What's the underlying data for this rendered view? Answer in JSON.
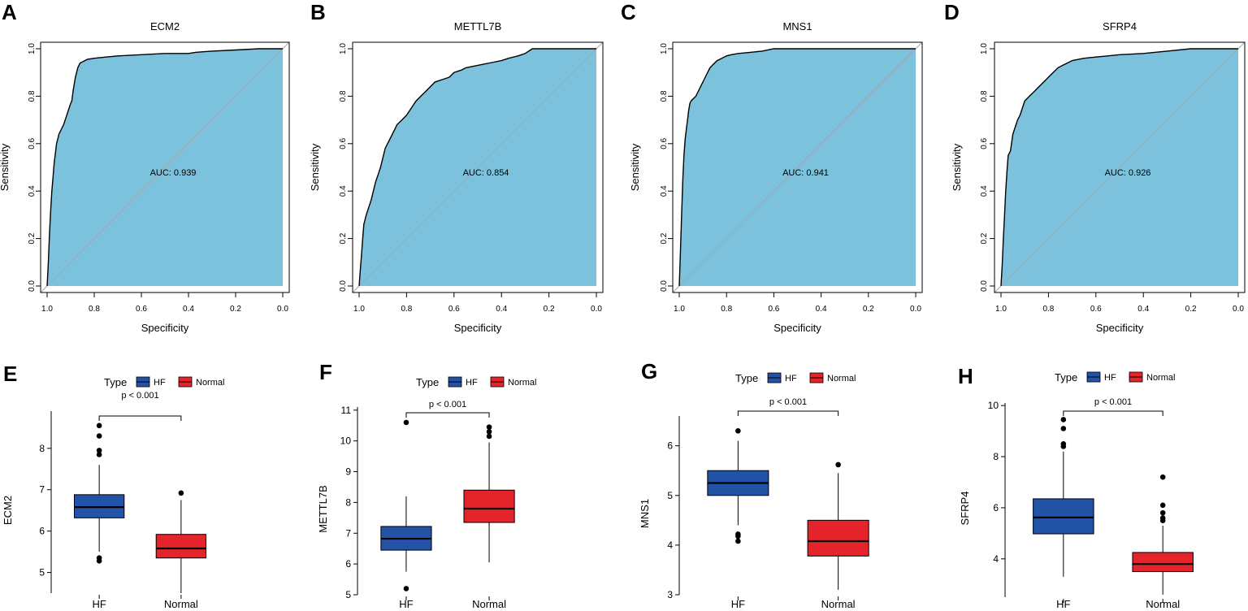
{
  "colors": {
    "roc_fill": "#7cc2dd",
    "hf": "#2353a7",
    "normal": "#e4232a",
    "diag": "#a6a6a6"
  },
  "chart_data": [
    {
      "panel": "A",
      "type": "area",
      "title": "ECM2",
      "xlabel": "Specificity",
      "ylabel": "Sensitivity",
      "xlim": [
        1.0,
        0.0
      ],
      "ylim": [
        0.0,
        1.0
      ],
      "xticks": [
        "1.0",
        "0.8",
        "0.6",
        "0.4",
        "0.2",
        "0.0"
      ],
      "yticks": [
        "0.0",
        "0.2",
        "0.4",
        "0.6",
        "0.8",
        "1.0"
      ],
      "auc_label": "AUC: 0.939",
      "x": [
        1.0,
        0.995,
        0.99,
        0.985,
        0.98,
        0.975,
        0.97,
        0.965,
        0.96,
        0.955,
        0.95,
        0.945,
        0.94,
        0.93,
        0.92,
        0.91,
        0.9,
        0.895,
        0.89,
        0.885,
        0.88,
        0.875,
        0.87,
        0.865,
        0.86,
        0.85,
        0.84,
        0.83,
        0.8,
        0.75,
        0.7,
        0.6,
        0.5,
        0.4,
        0.37,
        0.3,
        0.2,
        0.1,
        0.0
      ],
      "y": [
        0.0,
        0.1,
        0.22,
        0.32,
        0.4,
        0.46,
        0.52,
        0.56,
        0.6,
        0.62,
        0.64,
        0.65,
        0.66,
        0.68,
        0.71,
        0.74,
        0.77,
        0.78,
        0.82,
        0.85,
        0.88,
        0.9,
        0.92,
        0.93,
        0.94,
        0.945,
        0.95,
        0.955,
        0.96,
        0.965,
        0.97,
        0.975,
        0.98,
        0.98,
        0.985,
        0.99,
        0.995,
        1.0,
        1.0
      ]
    },
    {
      "panel": "B",
      "type": "area",
      "title": "METTL7B",
      "xlabel": "Specificity",
      "ylabel": "Sensitivity",
      "xlim": [
        1.0,
        0.0
      ],
      "ylim": [
        0.0,
        1.0
      ],
      "xticks": [
        "1.0",
        "0.8",
        "0.6",
        "0.4",
        "0.2",
        "0.0"
      ],
      "yticks": [
        "0.0",
        "0.2",
        "0.4",
        "0.6",
        "0.8",
        "1.0"
      ],
      "auc_label": "AUC: 0.854",
      "x": [
        1.0,
        0.995,
        0.99,
        0.985,
        0.98,
        0.97,
        0.96,
        0.95,
        0.94,
        0.93,
        0.92,
        0.91,
        0.9,
        0.89,
        0.88,
        0.87,
        0.86,
        0.85,
        0.84,
        0.82,
        0.8,
        0.78,
        0.76,
        0.74,
        0.72,
        0.7,
        0.68,
        0.65,
        0.62,
        0.6,
        0.57,
        0.55,
        0.5,
        0.45,
        0.4,
        0.37,
        0.33,
        0.3,
        0.27,
        0.2,
        0.1,
        0.0
      ],
      "y": [
        0.0,
        0.07,
        0.13,
        0.2,
        0.26,
        0.3,
        0.33,
        0.36,
        0.4,
        0.44,
        0.47,
        0.5,
        0.54,
        0.58,
        0.6,
        0.62,
        0.64,
        0.66,
        0.68,
        0.7,
        0.72,
        0.75,
        0.78,
        0.8,
        0.82,
        0.84,
        0.86,
        0.87,
        0.88,
        0.9,
        0.91,
        0.92,
        0.93,
        0.94,
        0.95,
        0.96,
        0.97,
        0.98,
        1.0,
        1.0,
        1.0,
        1.0
      ]
    },
    {
      "panel": "C",
      "type": "area",
      "title": "MNS1",
      "xlabel": "Specificity",
      "ylabel": "Sensitivity",
      "xlim": [
        1.0,
        0.0
      ],
      "ylim": [
        0.0,
        1.0
      ],
      "xticks": [
        "1.0",
        "0.8",
        "0.6",
        "0.4",
        "0.2",
        "0.0"
      ],
      "yticks": [
        "0.0",
        "0.2",
        "0.4",
        "0.6",
        "0.8",
        "1.0"
      ],
      "auc_label": "AUC: 0.941",
      "x": [
        1.0,
        0.995,
        0.99,
        0.985,
        0.98,
        0.975,
        0.97,
        0.965,
        0.96,
        0.955,
        0.95,
        0.94,
        0.93,
        0.92,
        0.91,
        0.9,
        0.89,
        0.88,
        0.87,
        0.86,
        0.85,
        0.84,
        0.82,
        0.8,
        0.78,
        0.75,
        0.7,
        0.65,
        0.6,
        0.5,
        0.4,
        0.3,
        0.2,
        0.1,
        0.0
      ],
      "y": [
        0.0,
        0.15,
        0.3,
        0.45,
        0.55,
        0.62,
        0.66,
        0.7,
        0.74,
        0.77,
        0.78,
        0.79,
        0.8,
        0.82,
        0.84,
        0.86,
        0.88,
        0.9,
        0.92,
        0.93,
        0.94,
        0.95,
        0.96,
        0.97,
        0.975,
        0.98,
        0.985,
        0.99,
        1.0,
        1.0,
        1.0,
        1.0,
        1.0,
        1.0,
        1.0
      ]
    },
    {
      "panel": "D",
      "type": "area",
      "title": "SFRP4",
      "xlabel": "Specificity",
      "ylabel": "Sensitivity",
      "xlim": [
        1.0,
        0.0
      ],
      "ylim": [
        0.0,
        1.0
      ],
      "xticks": [
        "1.0",
        "0.8",
        "0.6",
        "0.4",
        "0.2",
        "0.0"
      ],
      "yticks": [
        "0.0",
        "0.2",
        "0.4",
        "0.6",
        "0.8",
        "1.0"
      ],
      "auc_label": "AUC: 0.926",
      "x": [
        1.0,
        0.995,
        0.99,
        0.985,
        0.98,
        0.975,
        0.97,
        0.96,
        0.95,
        0.94,
        0.93,
        0.92,
        0.91,
        0.9,
        0.88,
        0.86,
        0.84,
        0.82,
        0.8,
        0.78,
        0.76,
        0.74,
        0.72,
        0.7,
        0.65,
        0.6,
        0.55,
        0.5,
        0.4,
        0.3,
        0.2,
        0.1,
        0.0
      ],
      "y": [
        0.0,
        0.09,
        0.2,
        0.3,
        0.4,
        0.48,
        0.55,
        0.57,
        0.64,
        0.67,
        0.7,
        0.72,
        0.75,
        0.78,
        0.8,
        0.82,
        0.84,
        0.86,
        0.88,
        0.9,
        0.92,
        0.93,
        0.94,
        0.95,
        0.96,
        0.965,
        0.97,
        0.975,
        0.98,
        0.99,
        1.0,
        1.0,
        1.0
      ]
    },
    {
      "panel": "E",
      "type": "box",
      "ylabel": "ECM2",
      "legend_title": "Type",
      "categories": [
        "HF",
        "Normal"
      ],
      "ylim": [
        4.5,
        8.9
      ],
      "yticks": [
        5,
        6,
        7,
        8
      ],
      "pvalue_label": "p < 0.001",
      "series": [
        {
          "name": "HF",
          "q1": 6.32,
          "median": 6.58,
          "q3": 6.88,
          "wlow": 5.5,
          "whigh": 7.6,
          "outliers": [
            5.28,
            5.35,
            7.85,
            7.95,
            8.3,
            8.55
          ]
        },
        {
          "name": "Normal",
          "q1": 5.35,
          "median": 5.58,
          "q3": 5.92,
          "wlow": 4.5,
          "whigh": 6.75,
          "outliers": [
            6.92
          ]
        }
      ]
    },
    {
      "panel": "F",
      "type": "box",
      "ylabel": "METTL7B",
      "legend_title": "Type",
      "categories": [
        "HF",
        "Normal"
      ],
      "ylim": [
        5.0,
        11.1
      ],
      "yticks": [
        5,
        6,
        7,
        8,
        9,
        10,
        11
      ],
      "pvalue_label": "p < 0.001",
      "series": [
        {
          "name": "HF",
          "q1": 6.45,
          "median": 6.82,
          "q3": 7.22,
          "wlow": 5.75,
          "whigh": 8.2,
          "outliers": [
            5.2,
            10.6
          ]
        },
        {
          "name": "Normal",
          "q1": 7.35,
          "median": 7.8,
          "q3": 8.4,
          "wlow": 6.05,
          "whigh": 9.95,
          "outliers": [
            10.15,
            10.3,
            10.45
          ]
        }
      ]
    },
    {
      "panel": "G",
      "type": "box",
      "ylabel": "MNS1",
      "legend_title": "Type",
      "categories": [
        "HF",
        "Normal"
      ],
      "ylim": [
        3.0,
        6.6
      ],
      "yticks": [
        3,
        4,
        5,
        6
      ],
      "pvalue_label": "p < 0.001",
      "series": [
        {
          "name": "HF",
          "q1": 5.0,
          "median": 5.25,
          "q3": 5.5,
          "wlow": 4.4,
          "whigh": 6.1,
          "outliers": [
            4.08,
            4.18,
            4.22,
            6.3
          ]
        },
        {
          "name": "Normal",
          "q1": 3.78,
          "median": 4.08,
          "q3": 4.5,
          "wlow": 3.1,
          "whigh": 5.45,
          "outliers": [
            5.62
          ]
        }
      ]
    },
    {
      "panel": "H",
      "type": "box",
      "ylabel": "SFRP4",
      "legend_title": "Type",
      "categories": [
        "HF",
        "Normal"
      ],
      "ylim": [
        2.5,
        10.1
      ],
      "yticks": [
        4,
        6,
        8,
        10
      ],
      "pvalue_label": "p < 0.001",
      "series": [
        {
          "name": "HF",
          "q1": 4.98,
          "median": 5.62,
          "q3": 6.35,
          "wlow": 3.3,
          "whigh": 8.2,
          "outliers": [
            8.4,
            8.5,
            9.1,
            9.45
          ]
        },
        {
          "name": "Normal",
          "q1": 3.5,
          "median": 3.8,
          "q3": 4.25,
          "wlow": 2.6,
          "whigh": 5.3,
          "outliers": [
            5.5,
            5.6,
            5.8,
            6.1,
            7.2
          ]
        }
      ]
    }
  ]
}
